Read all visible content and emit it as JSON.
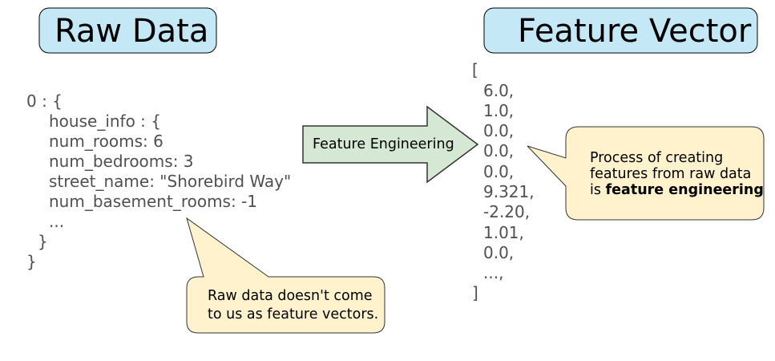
{
  "raw_data": {
    "title": "Raw Data",
    "lines": [
      "0 : {",
      "house_info : {",
      "num_rooms: 6",
      "num_bedrooms: 3",
      "street_name: \"Shorebird Way\"",
      "num_basement_rooms: -1",
      "...",
      "}",
      "}"
    ]
  },
  "arrow": {
    "label": "Feature Engineering"
  },
  "feature_vector": {
    "title": "Feature Vector",
    "open": "[",
    "values": [
      "6.0,",
      "1.0,",
      "0.0,",
      "0.0,",
      "0.0,",
      "9.321,",
      "-2.20,",
      "1.01,",
      "0.0,",
      "...,"
    ],
    "close": "]"
  },
  "callouts": {
    "raw": {
      "line1": "Raw data doesn't come",
      "line2": "to us as feature vectors."
    },
    "feature": {
      "line1": "Process of creating",
      "line2": "features from raw data",
      "line3_prefix": "is ",
      "line3_bold": "feature engineering"
    }
  },
  "colors": {
    "title_box": "#c5e8f7",
    "arrow_fill": "#d5e8d4",
    "callout_fill": "#fff2cc",
    "code_text": "#505050"
  }
}
